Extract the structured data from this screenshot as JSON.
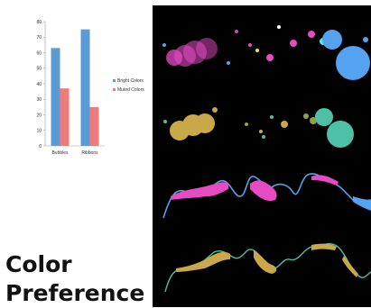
{
  "chart_data": {
    "type": "bar",
    "categories": [
      "Bubbles",
      "Ribbons"
    ],
    "series": [
      {
        "name": "Bright Colors",
        "color": "#5b9bd5",
        "values": [
          63,
          75
        ]
      },
      {
        "name": "Muted Colors",
        "color": "#f07a7a",
        "values": [
          37,
          25
        ]
      }
    ],
    "yticks": [
      0,
      10,
      20,
      30,
      40,
      50,
      60,
      70,
      80
    ],
    "ylim": [
      0,
      80
    ],
    "legend_placement": "right",
    "grid": false
  },
  "caption": {
    "line1": "Color",
    "line2": "Preference"
  },
  "visualization_panel": {
    "background": "#000000",
    "palettes": {
      "bright": [
        "#e64bc4",
        "#55a3f0",
        "#5ce8e0",
        "#e4ea6a",
        "#c94bc9"
      ],
      "muted": [
        "#c9a84a",
        "#4fc0a8",
        "#8aa44a",
        "#5aa0c8"
      ]
    }
  }
}
